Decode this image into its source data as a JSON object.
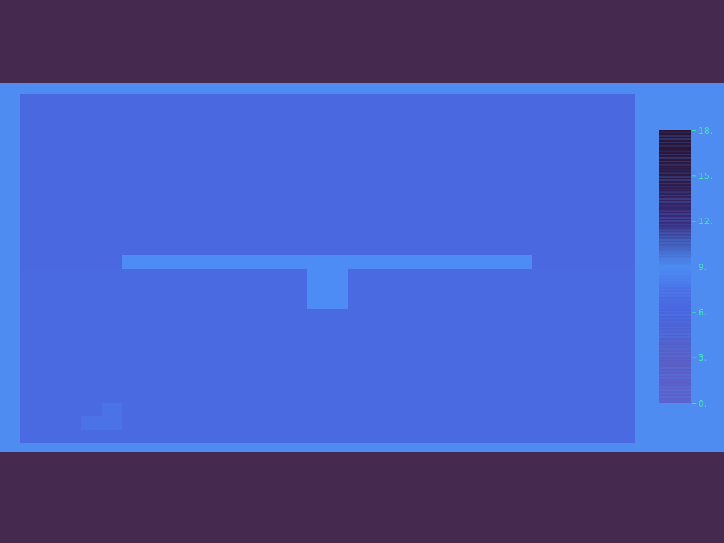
{
  "chart_data": {
    "type": "heatmap",
    "tick_labels": false,
    "cells": [
      [
        6.8,
        6.8,
        6.8,
        6.8,
        6.8,
        6.8,
        6.8,
        6.8,
        6.8,
        6.8,
        6.8,
        6.8,
        6.8,
        6.8,
        6.8,
        6.8,
        6.8,
        6.8,
        6.8,
        6.8,
        6.8,
        6.8,
        6.8,
        6.8,
        6.8,
        6.8,
        6.8,
        6.8,
        6.8,
        6.8
      ],
      [
        6.8,
        6.8,
        6.8,
        6.8,
        6.8,
        6.8,
        6.8,
        6.8,
        6.8,
        6.8,
        6.8,
        6.8,
        6.8,
        6.8,
        6.8,
        6.8,
        6.8,
        6.8,
        6.8,
        6.8,
        6.8,
        6.8,
        6.8,
        6.8,
        6.8,
        6.8,
        6.8,
        6.8,
        6.8,
        6.8
      ],
      [
        6.8,
        6.8,
        6.8,
        6.8,
        6.8,
        6.8,
        6.8,
        6.8,
        6.8,
        6.8,
        6.8,
        6.8,
        6.8,
        6.8,
        6.8,
        6.8,
        6.8,
        6.8,
        6.8,
        6.8,
        6.8,
        6.8,
        6.8,
        6.8,
        6.8,
        6.8,
        6.8,
        6.8,
        6.8,
        6.8
      ],
      [
        6.8,
        6.8,
        6.8,
        6.8,
        6.8,
        6.8,
        6.8,
        6.8,
        6.8,
        6.8,
        6.8,
        6.8,
        6.8,
        6.8,
        6.8,
        6.8,
        6.8,
        6.8,
        6.8,
        6.8,
        6.8,
        6.8,
        6.8,
        6.8,
        6.8,
        6.8,
        6.8,
        6.8,
        6.8,
        6.8
      ],
      [
        6.8,
        6.8,
        6.8,
        6.8,
        6.8,
        6.8,
        6.8,
        6.8,
        6.8,
        6.8,
        6.8,
        6.8,
        6.8,
        6.8,
        6.8,
        6.8,
        6.8,
        6.8,
        6.8,
        6.8,
        6.8,
        6.8,
        6.8,
        6.8,
        6.8,
        6.8,
        6.8,
        6.8,
        6.8,
        6.8
      ],
      [
        6.8,
        6.8,
        6.8,
        6.8,
        6.8,
        6.8,
        6.8,
        6.8,
        6.8,
        6.8,
        6.8,
        6.8,
        6.8,
        6.8,
        6.8,
        6.8,
        6.8,
        6.8,
        6.8,
        6.8,
        6.8,
        6.8,
        6.8,
        6.8,
        6.8,
        6.8,
        6.8,
        6.8,
        6.8,
        6.8
      ],
      [
        6.8,
        6.8,
        6.8,
        6.8,
        6.8,
        6.8,
        6.8,
        6.8,
        6.8,
        6.8,
        6.8,
        6.8,
        6.8,
        6.8,
        6.8,
        6.8,
        6.8,
        6.8,
        6.8,
        6.8,
        6.8,
        6.8,
        6.8,
        6.8,
        6.8,
        6.8,
        6.8,
        6.8,
        6.8,
        6.8
      ],
      [
        6.8,
        6.8,
        6.8,
        6.8,
        6.8,
        6.8,
        6.8,
        6.8,
        6.8,
        6.8,
        6.8,
        6.8,
        6.8,
        6.8,
        6.8,
        6.8,
        6.8,
        6.8,
        6.8,
        6.8,
        6.8,
        6.8,
        6.8,
        6.8,
        6.8,
        6.8,
        6.8,
        6.8,
        6.8,
        6.8
      ],
      [
        6.8,
        6.8,
        6.8,
        6.8,
        6.8,
        6.8,
        6.8,
        6.8,
        6.8,
        6.8,
        6.8,
        6.8,
        6.8,
        6.8,
        6.8,
        6.8,
        6.8,
        6.8,
        6.8,
        6.8,
        6.8,
        6.8,
        6.8,
        6.8,
        6.8,
        6.8,
        6.8,
        6.8,
        6.8,
        6.8
      ],
      [
        6.8,
        6.8,
        6.8,
        6.8,
        6.8,
        6.8,
        6.8,
        6.8,
        6.8,
        6.8,
        6.8,
        6.8,
        6.8,
        6.8,
        6.8,
        6.8,
        6.8,
        6.8,
        6.8,
        6.8,
        6.8,
        6.8,
        6.8,
        6.8,
        6.8,
        6.8,
        6.8,
        6.8,
        6.8,
        6.8
      ],
      [
        6.8,
        6.8,
        6.8,
        6.8,
        6.8,
        6.8,
        6.8,
        6.8,
        6.8,
        6.8,
        6.8,
        6.8,
        6.8,
        6.8,
        6.8,
        6.8,
        6.8,
        6.8,
        6.8,
        6.8,
        6.8,
        6.8,
        6.8,
        6.8,
        6.8,
        6.8,
        6.8,
        6.8,
        6.8,
        6.8
      ],
      [
        6.8,
        6.8,
        6.8,
        6.8,
        6.8,
        6.8,
        6.8,
        6.8,
        6.8,
        6.8,
        6.8,
        6.8,
        6.8,
        6.8,
        6.8,
        6.8,
        6.8,
        6.8,
        6.8,
        6.8,
        6.8,
        6.8,
        6.8,
        6.8,
        6.8,
        6.8,
        6.8,
        6.8,
        6.8,
        6.8
      ],
      [
        6.8,
        6.8,
        6.8,
        6.8,
        6.8,
        9,
        9,
        9,
        9,
        9,
        9,
        9,
        9,
        9,
        9,
        9,
        9,
        9,
        9,
        9,
        9,
        9,
        9,
        9,
        9,
        6.8,
        6.8,
        6.8,
        6.8,
        6.8
      ],
      [
        7,
        7,
        7,
        7,
        7,
        7,
        7,
        7,
        7,
        7,
        7,
        7,
        7,
        7,
        9,
        9,
        7,
        7,
        7,
        7,
        7,
        7,
        7,
        7,
        7,
        7,
        7,
        7,
        7,
        7
      ],
      [
        7,
        7,
        7,
        7,
        7,
        7,
        7,
        7,
        7,
        7,
        7,
        7,
        7,
        7,
        9,
        9,
        7,
        7,
        7,
        7,
        7,
        7,
        7,
        7,
        7,
        7,
        7,
        7,
        7,
        7
      ],
      [
        7,
        7,
        7,
        7,
        7,
        7,
        7,
        7,
        7,
        7,
        7,
        7,
        7,
        7,
        9,
        9,
        7,
        7,
        7,
        7,
        7,
        7,
        7,
        7,
        7,
        7,
        7,
        7,
        7,
        7
      ],
      [
        7,
        7,
        7,
        7,
        7,
        7,
        7,
        7,
        7,
        7,
        7,
        7,
        7,
        7,
        7,
        7,
        7,
        7,
        7,
        7,
        7,
        7,
        7,
        7,
        7,
        7,
        7,
        7,
        7,
        7
      ],
      [
        7,
        7,
        7,
        7,
        7,
        7,
        7,
        7,
        7,
        7,
        7,
        7,
        7,
        7,
        7,
        7,
        7,
        7,
        7,
        7,
        7,
        7,
        7,
        7,
        7,
        7,
        7,
        7,
        7,
        7
      ],
      [
        7,
        7,
        7,
        7,
        7,
        7,
        7,
        7,
        7,
        7,
        7,
        7,
        7,
        7,
        7,
        7,
        7,
        7,
        7,
        7,
        7,
        7,
        7,
        7,
        7,
        7,
        7,
        7,
        7,
        7
      ],
      [
        7,
        7,
        7,
        7,
        7,
        7,
        7,
        7,
        7,
        7,
        7,
        7,
        7,
        7,
        7,
        7,
        7,
        7,
        7,
        7,
        7,
        7,
        7,
        7,
        7,
        7,
        7,
        7,
        7,
        7
      ],
      [
        7,
        7,
        7,
        7,
        7,
        7,
        7,
        7,
        7,
        7,
        7,
        7,
        7,
        7,
        7,
        7,
        7,
        7,
        7,
        7,
        7,
        7,
        7,
        7,
        7,
        7,
        7,
        7,
        7,
        7
      ],
      [
        7,
        7,
        7,
        7,
        7,
        7,
        7,
        7,
        7,
        7,
        7,
        7,
        7,
        7,
        7,
        7,
        7,
        7,
        7,
        7,
        7,
        7,
        7,
        7,
        7,
        7,
        7,
        7,
        7,
        7
      ],
      [
        7,
        7,
        7,
        7,
        7,
        7,
        7,
        7,
        7,
        7,
        7,
        7,
        7,
        7,
        7,
        7,
        7,
        7,
        7,
        7,
        7,
        7,
        7,
        7,
        7,
        7,
        7,
        7,
        7,
        7
      ],
      [
        7,
        7,
        7,
        7,
        7.5,
        7,
        7,
        7,
        7,
        7,
        7,
        7,
        7,
        7,
        7,
        7,
        7,
        7,
        7,
        7,
        7,
        7,
        7,
        7,
        7,
        7,
        7,
        7,
        7,
        7
      ],
      [
        7,
        7,
        7,
        7.5,
        7.5,
        7,
        7,
        7,
        7,
        7,
        7,
        7,
        7,
        7,
        7,
        7,
        7,
        7,
        7,
        7,
        7,
        7,
        7,
        7,
        7,
        7,
        7,
        7,
        7,
        7
      ],
      [
        7,
        7,
        7,
        7,
        7,
        7,
        7,
        7,
        7,
        7,
        7,
        7,
        7,
        7,
        7,
        7,
        7,
        7,
        7,
        7,
        7,
        7,
        7,
        7,
        7,
        7,
        7,
        7,
        7,
        7
      ]
    ],
    "colorbar_range": [
      0,
      18
    ],
    "colorbar_ticks": [
      {
        "value": 0,
        "label": "0."
      },
      {
        "value": 3,
        "label": "3."
      },
      {
        "value": 6,
        "label": "6."
      },
      {
        "value": 9,
        "label": "9."
      },
      {
        "value": 12,
        "label": "12."
      },
      {
        "value": 15,
        "label": "15."
      },
      {
        "value": 18,
        "label": "18."
      }
    ]
  }
}
